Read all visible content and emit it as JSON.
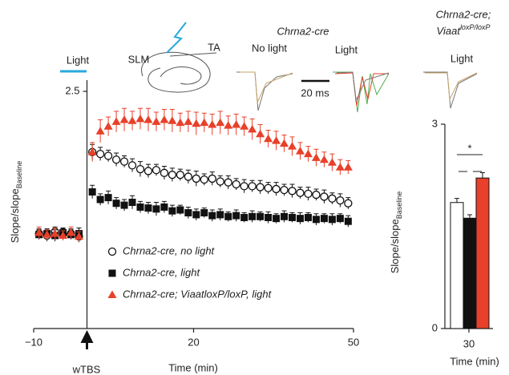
{
  "chart_data": [
    {
      "type": "scatter",
      "xlabel": "Time (min)",
      "ylabel": {
        "text": "Slope/slope",
        "subscript": "Baseline"
      },
      "xlim": [
        -10,
        50
      ],
      "ylim": [
        0,
        2.5
      ],
      "xticks": [
        {
          "value": -10,
          "label": "−10"
        },
        20,
        50
      ],
      "yticks": [
        2.5
      ],
      "x": [
        -9,
        -7.5,
        -6,
        -4.5,
        -3,
        -1.5,
        1,
        2.5,
        4,
        5.5,
        7,
        8.5,
        10,
        11.5,
        13,
        14.5,
        16,
        17.5,
        19,
        20.5,
        22,
        23.5,
        25,
        26.5,
        28,
        29.5,
        31,
        32.5,
        34,
        35.5,
        37,
        38.5,
        40,
        41.5,
        43,
        44.5,
        46,
        47.5,
        49
      ],
      "series": [
        {
          "name": "Chrna2-cre, no light",
          "marker": "circle",
          "color": "#ffffff",
          "values": [
            1.0,
            0.98,
            1.02,
            0.99,
            1.0,
            0.97,
            1.86,
            1.84,
            1.82,
            1.78,
            1.76,
            1.72,
            1.68,
            1.66,
            1.67,
            1.64,
            1.62,
            1.62,
            1.6,
            1.58,
            1.57,
            1.58,
            1.55,
            1.54,
            1.52,
            1.5,
            1.5,
            1.49,
            1.48,
            1.47,
            1.46,
            1.45,
            1.43,
            1.42,
            1.41,
            1.39,
            1.37,
            1.35,
            1.32
          ],
          "errors": [
            0.05,
            0.06,
            0.05,
            0.06,
            0.05,
            0.06,
            0.08,
            0.07,
            0.06,
            0.07,
            0.06,
            0.07,
            0.08,
            0.07,
            0.06,
            0.07,
            0.07,
            0.06,
            0.07,
            0.08,
            0.06,
            0.07,
            0.06,
            0.07,
            0.06,
            0.07,
            0.06,
            0.07,
            0.06,
            0.07,
            0.06,
            0.07,
            0.06,
            0.07,
            0.06,
            0.07,
            0.06,
            0.07,
            0.06
          ]
        },
        {
          "name": "Chrna2-cre, light",
          "marker": "square",
          "color": "#111111",
          "values": [
            0.99,
            1.0,
            0.98,
            1.01,
            0.99,
            1.0,
            1.44,
            1.36,
            1.38,
            1.32,
            1.3,
            1.33,
            1.28,
            1.27,
            1.26,
            1.28,
            1.24,
            1.25,
            1.22,
            1.2,
            1.22,
            1.19,
            1.2,
            1.18,
            1.19,
            1.17,
            1.18,
            1.18,
            1.17,
            1.16,
            1.18,
            1.17,
            1.16,
            1.17,
            1.15,
            1.16,
            1.15,
            1.16,
            1.13
          ],
          "errors": [
            0.05,
            0.05,
            0.06,
            0.05,
            0.05,
            0.06,
            0.07,
            0.06,
            0.07,
            0.06,
            0.06,
            0.07,
            0.06,
            0.06,
            0.07,
            0.06,
            0.06,
            0.05,
            0.06,
            0.06,
            0.05,
            0.06,
            0.06,
            0.05,
            0.06,
            0.05,
            0.06,
            0.05,
            0.06,
            0.05,
            0.06,
            0.05,
            0.06,
            0.05,
            0.06,
            0.05,
            0.06,
            0.05,
            0.06
          ]
        },
        {
          "name": "Chrna2-cre; ViaatloxP/loxP, light",
          "marker": "triangle",
          "color": "#e8402a",
          "values": [
            1.01,
            0.99,
            1.0,
            0.98,
            1.01,
            0.97,
            1.86,
            2.08,
            2.13,
            2.18,
            2.2,
            2.19,
            2.21,
            2.2,
            2.18,
            2.2,
            2.19,
            2.17,
            2.18,
            2.16,
            2.17,
            2.15,
            2.17,
            2.14,
            2.15,
            2.13,
            2.1,
            2.05,
            2.0,
            1.98,
            1.95,
            1.92,
            1.87,
            1.84,
            1.8,
            1.78,
            1.75,
            1.7,
            1.7
          ],
          "errors": [
            0.06,
            0.05,
            0.06,
            0.05,
            0.06,
            0.05,
            0.1,
            0.12,
            0.1,
            0.11,
            0.12,
            0.1,
            0.11,
            0.12,
            0.1,
            0.11,
            0.12,
            0.1,
            0.11,
            0.12,
            0.1,
            0.11,
            0.12,
            0.1,
            0.11,
            0.1,
            0.11,
            0.1,
            0.09,
            0.1,
            0.09,
            0.1,
            0.09,
            0.08,
            0.09,
            0.08,
            0.09,
            0.08,
            0.07
          ]
        }
      ],
      "annotations": [
        "Light",
        "SLM",
        "TA",
        "Chrna2-cre",
        "No light",
        "Light",
        "Light",
        "20 ms",
        "wTBS"
      ],
      "genotype_label": {
        "line1": "Chrna2-cre;",
        "text": "Viaat",
        "superscript": "loxP/loxP"
      }
    },
    {
      "type": "bar",
      "xlabel": "Time (min)",
      "ylabel": {
        "text": "Slope/slope",
        "subscript": "Baseline"
      },
      "categories": [
        "30"
      ],
      "ylim": [
        0,
        3
      ],
      "yticks": [
        0,
        3
      ],
      "series": [
        {
          "color": "#ffffff",
          "values": [
            1.85
          ],
          "errors": [
            0.06
          ]
        },
        {
          "color": "#111111",
          "values": [
            1.62
          ],
          "errors": [
            0.05
          ]
        },
        {
          "color": "#e8402a",
          "values": [
            2.21
          ],
          "errors": [
            0.08
          ]
        }
      ],
      "annotations": [
        "*"
      ]
    }
  ]
}
